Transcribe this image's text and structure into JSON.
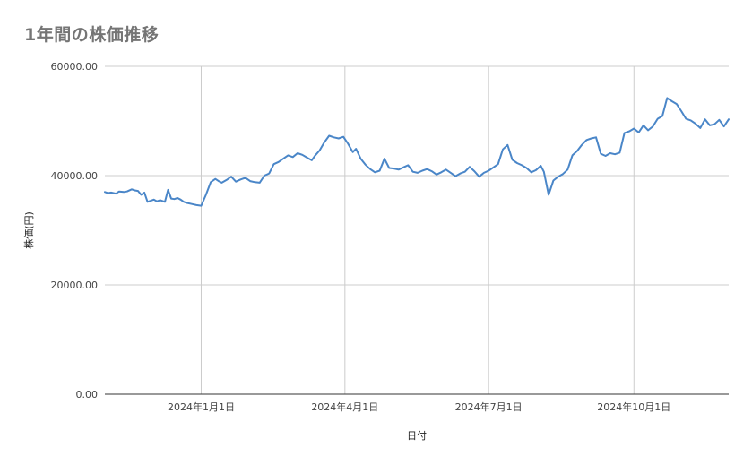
{
  "chart_data": {
    "type": "line",
    "title": "1年間の株価推移",
    "xlabel": "日付",
    "ylabel": "株価(円)",
    "ylim": [
      0,
      60000
    ],
    "yticks": [
      {
        "value": 0,
        "label": "0.00"
      },
      {
        "value": 20000,
        "label": "20000.00"
      },
      {
        "value": 40000,
        "label": "40000.00"
      },
      {
        "value": 60000,
        "label": "60000.00"
      }
    ],
    "xlim": [
      "2023-11-01",
      "2024-11-30"
    ],
    "xticks": [
      {
        "value": "2024-01-01",
        "label": "2024年1月1日"
      },
      {
        "value": "2024-04-01",
        "label": "2024年4月1日"
      },
      {
        "value": "2024-07-01",
        "label": "2024年7月1日"
      },
      {
        "value": "2024-10-01",
        "label": "2024年10月1日"
      }
    ],
    "grid": true,
    "line_color": "#4a86c8",
    "series": [
      {
        "x": [
          "2023-11-01",
          "2023-11-03",
          "2023-11-05",
          "2023-11-08",
          "2023-11-10",
          "2023-11-13",
          "2023-11-15",
          "2023-11-18",
          "2023-11-20",
          "2023-11-22",
          "2023-11-24",
          "2023-11-26",
          "2023-11-28",
          "2023-11-30",
          "2023-12-02",
          "2023-12-04",
          "2023-12-06",
          "2023-12-09",
          "2023-12-11",
          "2023-12-13",
          "2023-12-15",
          "2023-12-17",
          "2023-12-19",
          "2023-12-21",
          "2023-12-23",
          "2023-12-26",
          "2023-12-29",
          "2024-01-01",
          "2024-01-04",
          "2024-01-07",
          "2024-01-10",
          "2024-01-12",
          "2024-01-14",
          "2024-01-17",
          "2024-01-20",
          "2024-01-23",
          "2024-01-26",
          "2024-01-29",
          "2024-02-01",
          "2024-02-04",
          "2024-02-07",
          "2024-02-10",
          "2024-02-13",
          "2024-02-16",
          "2024-02-19",
          "2024-02-22",
          "2024-02-25",
          "2024-02-28",
          "2024-03-02",
          "2024-03-05",
          "2024-03-08",
          "2024-03-11",
          "2024-03-13",
          "2024-03-16",
          "2024-03-19",
          "2024-03-22",
          "2024-03-25",
          "2024-03-28",
          "2024-03-31",
          "2024-04-03",
          "2024-04-06",
          "2024-04-08",
          "2024-04-11",
          "2024-04-14",
          "2024-04-17",
          "2024-04-20",
          "2024-04-23",
          "2024-04-26",
          "2024-04-29",
          "2024-05-02",
          "2024-05-05",
          "2024-05-08",
          "2024-05-11",
          "2024-05-14",
          "2024-05-17",
          "2024-05-20",
          "2024-05-23",
          "2024-05-26",
          "2024-05-29",
          "2024-06-01",
          "2024-06-04",
          "2024-06-07",
          "2024-06-10",
          "2024-06-13",
          "2024-06-16",
          "2024-06-19",
          "2024-06-22",
          "2024-06-25",
          "2024-06-28",
          "2024-07-01",
          "2024-07-04",
          "2024-07-07",
          "2024-07-10",
          "2024-07-13",
          "2024-07-16",
          "2024-07-19",
          "2024-07-22",
          "2024-07-25",
          "2024-07-28",
          "2024-07-31",
          "2024-08-03",
          "2024-08-05",
          "2024-08-08",
          "2024-08-11",
          "2024-08-14",
          "2024-08-17",
          "2024-08-20",
          "2024-08-23",
          "2024-08-26",
          "2024-08-29",
          "2024-09-01",
          "2024-09-04",
          "2024-09-07",
          "2024-09-10",
          "2024-09-13",
          "2024-09-16",
          "2024-09-19",
          "2024-09-22",
          "2024-09-25",
          "2024-09-28",
          "2024-10-01",
          "2024-10-04",
          "2024-10-07",
          "2024-10-10",
          "2024-10-13",
          "2024-10-16",
          "2024-10-19",
          "2024-10-22",
          "2024-10-25",
          "2024-10-28",
          "2024-10-31",
          "2024-11-03",
          "2024-11-06",
          "2024-11-09",
          "2024-11-12",
          "2024-11-15",
          "2024-11-18",
          "2024-11-21",
          "2024-11-24",
          "2024-11-27",
          "2024-11-30"
        ],
        "y": [
          37000,
          36800,
          36900,
          36700,
          37100,
          37000,
          37100,
          37500,
          37300,
          37200,
          36500,
          36900,
          35200,
          35400,
          35600,
          35300,
          35500,
          35200,
          37400,
          35800,
          35700,
          35900,
          35600,
          35200,
          35000,
          34800,
          34600,
          34500,
          36500,
          38800,
          39400,
          39000,
          38700,
          39200,
          39800,
          38900,
          39300,
          39600,
          39000,
          38800,
          38700,
          40000,
          40400,
          42100,
          42500,
          43100,
          43700,
          43400,
          44100,
          43800,
          43300,
          42800,
          43600,
          44600,
          46100,
          47300,
          47000,
          46800,
          47100,
          45800,
          44300,
          44900,
          43100,
          42000,
          41200,
          40600,
          40900,
          43100,
          41400,
          41300,
          41100,
          41500,
          41900,
          40700,
          40500,
          40900,
          41200,
          40800,
          40200,
          40600,
          41100,
          40500,
          39900,
          40400,
          40700,
          41600,
          40800,
          39800,
          40500,
          40900,
          41500,
          42100,
          44800,
          45600,
          42900,
          42300,
          41900,
          41400,
          40600,
          41000,
          41800,
          40700,
          36500,
          39100,
          39800,
          40300,
          41100,
          43700,
          44500,
          45600,
          46500,
          46800,
          47000,
          44000,
          43600,
          44100,
          43900,
          44200,
          47800,
          48100,
          48600,
          47900,
          49200,
          48300,
          49000,
          50400,
          50900,
          54200,
          53600,
          53100,
          51800,
          50400,
          50100,
          49500,
          48700,
          50300,
          49200,
          49400,
          50200,
          49000,
          50300
        ]
      }
    ]
  }
}
